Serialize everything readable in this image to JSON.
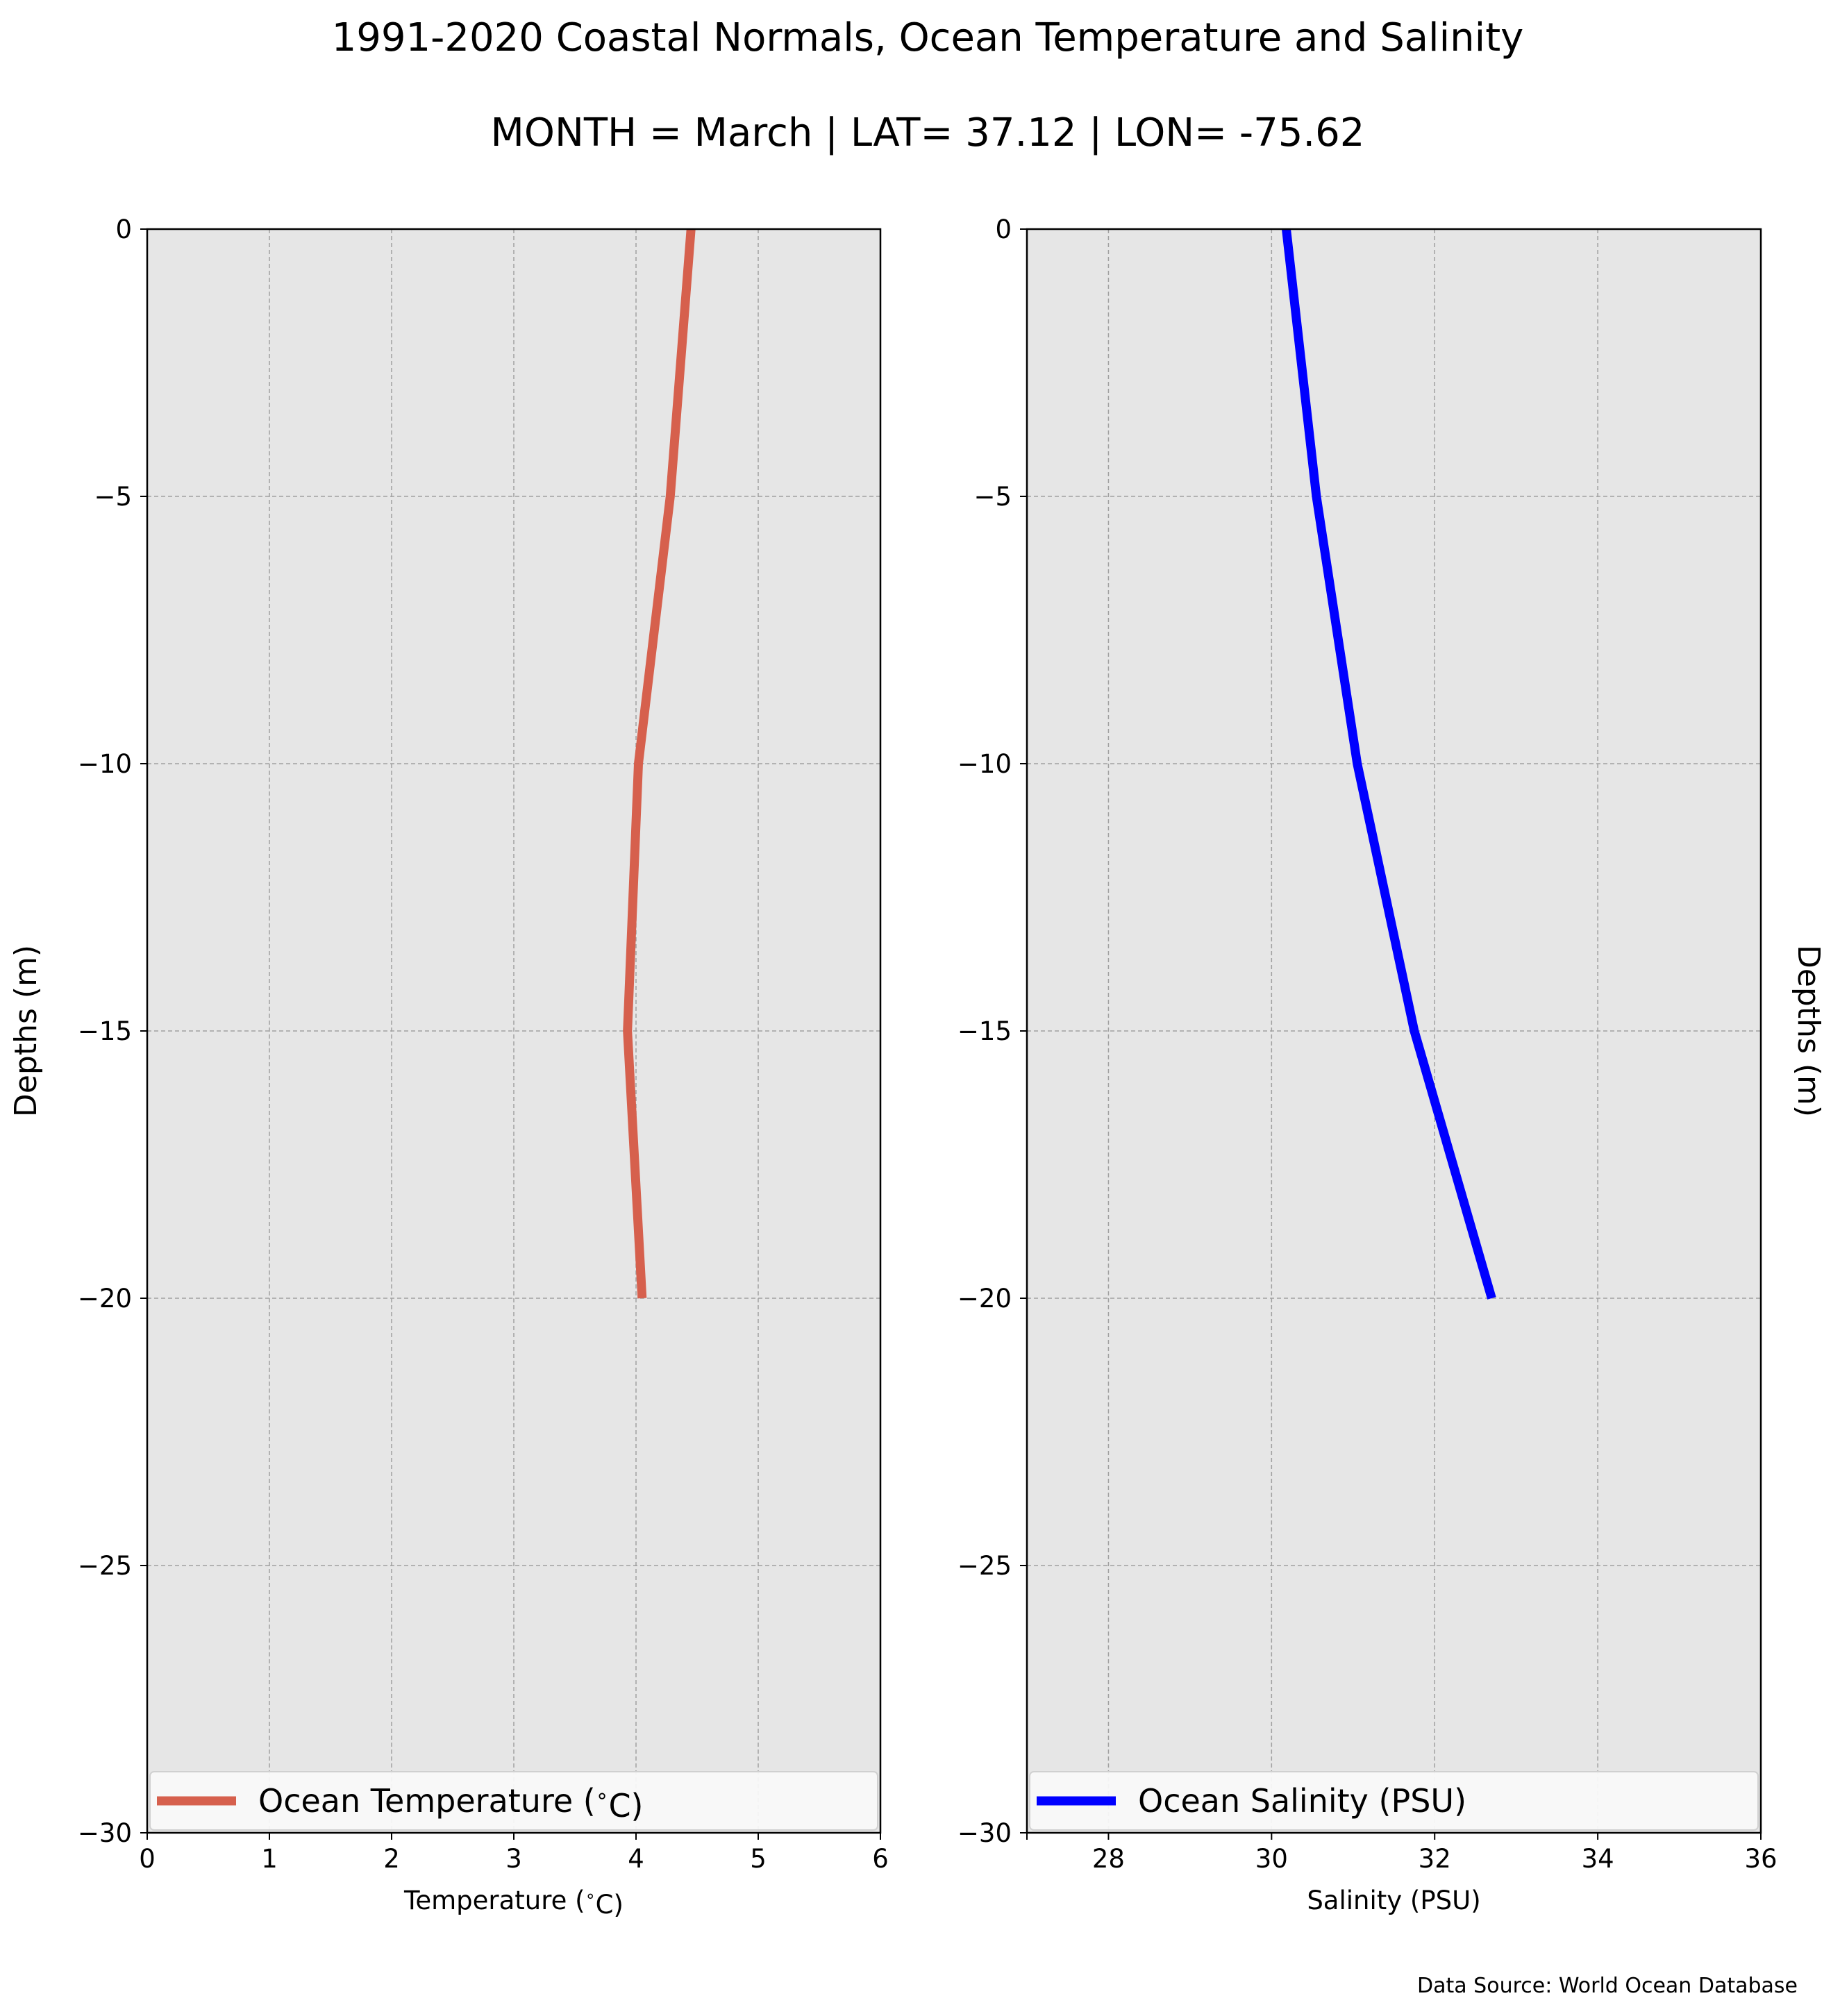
{
  "header": {
    "title": "1991-2020 Coastal Normals, Ocean Temperature and Salinity",
    "subtitle": "MONTH = March | LAT= 37.12 | LON= -75.62"
  },
  "footer": {
    "source": "Data Source: World Ocean Database"
  },
  "style": {
    "background": "#e6e6e6",
    "grid_color": "#a0a0a0"
  },
  "chart_data": [
    {
      "type": "line",
      "xlabel": "Temperature ($^\\circ$C)",
      "ylabel": "Depths (m)",
      "xlim": [
        0,
        6
      ],
      "ylim": [
        -30,
        0
      ],
      "xticks": [
        0,
        1,
        2,
        3,
        4,
        5,
        6
      ],
      "yticks": [
        0,
        -5,
        -10,
        -15,
        -20,
        -25,
        -30
      ],
      "xtick_labels": [
        "0",
        "1",
        "2",
        "3",
        "4",
        "5",
        "6"
      ],
      "ytick_labels": [
        "0",
        "−5",
        "−10",
        "−15",
        "−20",
        "−25",
        "−30"
      ],
      "grid": true,
      "legend_position": "bottom",
      "series": [
        {
          "name": "Ocean Temperature ($^\\circ$C)",
          "color": "#d6604d",
          "x": [
            4.45,
            4.28,
            4.02,
            3.93,
            4.05
          ],
          "y": [
            0,
            -5,
            -10,
            -15,
            -20
          ]
        }
      ]
    },
    {
      "type": "line",
      "xlabel": "Salinity (PSU)",
      "ylabel": "Depths (m)",
      "ylabel_side": "right",
      "xlim": [
        27,
        36
      ],
      "ylim": [
        -30,
        0
      ],
      "xticks": [
        28,
        30,
        32,
        34,
        36
      ],
      "yticks": [
        0,
        -5,
        -10,
        -15,
        -20,
        -25,
        -30
      ],
      "xtick_labels": [
        "28",
        "30",
        "32",
        "34",
        "36"
      ],
      "ytick_labels": [
        "0",
        "−5",
        "−10",
        "−15",
        "−20",
        "−25",
        "−30"
      ],
      "grid": true,
      "legend_position": "bottom",
      "series": [
        {
          "name": "Ocean Salinity (PSU)",
          "color": "#0000ff",
          "x": [
            30.18,
            30.55,
            31.05,
            31.75,
            32.7
          ],
          "y": [
            0,
            -5,
            -10,
            -15,
            -20
          ]
        }
      ]
    }
  ]
}
